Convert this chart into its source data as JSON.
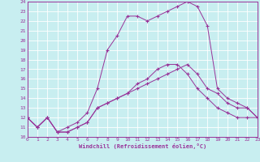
{
  "xlabel": "Windchill (Refroidissement éolien,°C)",
  "bg_color": "#c8eef0",
  "line_color": "#993399",
  "grid_color": "#ffffff",
  "xlim": [
    0,
    23
  ],
  "ylim": [
    10,
    24
  ],
  "xticks": [
    0,
    1,
    2,
    3,
    4,
    5,
    6,
    7,
    8,
    9,
    10,
    11,
    12,
    13,
    14,
    15,
    16,
    17,
    18,
    19,
    20,
    21,
    22,
    23
  ],
  "yticks": [
    10,
    11,
    12,
    13,
    14,
    15,
    16,
    17,
    18,
    19,
    20,
    21,
    22,
    23,
    24
  ],
  "line1_x": [
    0,
    1,
    2,
    3,
    4,
    5,
    6,
    7,
    8,
    9,
    10,
    11,
    12,
    13,
    14,
    15,
    16,
    17,
    18,
    19,
    20,
    21,
    22,
    23
  ],
  "line1_y": [
    12,
    11,
    12,
    10.5,
    10.5,
    11,
    11.5,
    13,
    13.5,
    14,
    14.5,
    15,
    15.5,
    16,
    16.5,
    17,
    17.5,
    16.5,
    15,
    14.5,
    13.5,
    13,
    13,
    12
  ],
  "line2_x": [
    0,
    1,
    2,
    3,
    4,
    5,
    6,
    7,
    8,
    9,
    10,
    11,
    12,
    13,
    14,
    15,
    16,
    17,
    18,
    19,
    20,
    21,
    22,
    23
  ],
  "line2_y": [
    12,
    11,
    12,
    10.5,
    11,
    11.5,
    12.5,
    15,
    19.0,
    20.5,
    22.5,
    22.5,
    22.0,
    22.5,
    23.0,
    23.5,
    24.0,
    23.5,
    21.5,
    15,
    14,
    13.5,
    13,
    12
  ],
  "line3_x": [
    0,
    1,
    2,
    3,
    4,
    5,
    6,
    7,
    8,
    9,
    10,
    11,
    12,
    13,
    14,
    15,
    16,
    17,
    18,
    19,
    20,
    21,
    22,
    23
  ],
  "line3_y": [
    12,
    11,
    12,
    10.5,
    10.5,
    11,
    11.5,
    13,
    13.5,
    14,
    14.5,
    15.5,
    16,
    17,
    17.5,
    17.5,
    16.5,
    15,
    14,
    13,
    12.5,
    12,
    12,
    12
  ]
}
